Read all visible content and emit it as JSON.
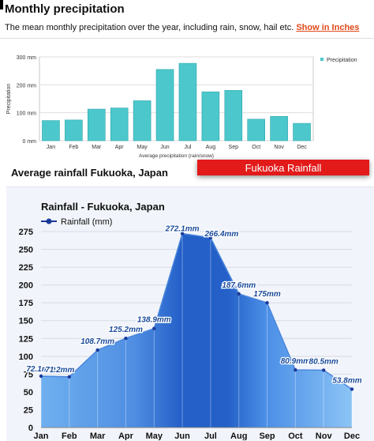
{
  "header": {
    "title": "Monthly precipitation",
    "subtitle": "The mean monthly precipitation over the year, including rain, snow, hail etc.",
    "link_label": "Show in Inches"
  },
  "section": {
    "title": "Average rainfall Fukuoka, Japan",
    "banner": "Fukuoka    Rainfall"
  },
  "colors": {
    "bar_fill": "#4cc8cc",
    "bar_stroke": "#2aa5aa",
    "area_light": "#6fb0f0",
    "area_dark": "#2460c8",
    "area_line": "#4a86dc",
    "banner": "#e21a1a",
    "link": "#e0491a"
  },
  "chart_data": [
    {
      "type": "bar",
      "title": "",
      "xlabel": "Average precipitation (rain/snow)",
      "ylabel": "Precipitation",
      "categories": [
        "Jan",
        "Feb",
        "Mar",
        "Apr",
        "May",
        "Jun",
        "Jul",
        "Aug",
        "Sep",
        "Oct",
        "Nov",
        "Dec"
      ],
      "series": [
        {
          "name": "Precipitation",
          "values": [
            72,
            74,
            113,
            117,
            143,
            255,
            277,
            175,
            180,
            77,
            87,
            62
          ]
        }
      ],
      "ylim": [
        0,
        300
      ],
      "yticks": [
        0,
        100,
        200,
        300
      ],
      "ytick_labels": [
        "0 mm",
        "100 mm",
        "200 mm",
        "300 mm"
      ],
      "grid": true,
      "legend": "top-right"
    },
    {
      "type": "area",
      "title": "Rainfall - Fukuoka, Japan",
      "xlabel": "",
      "ylabel": "",
      "categories": [
        "Jan",
        "Feb",
        "Mar",
        "Apr",
        "May",
        "Jun",
        "Jul",
        "Aug",
        "Sep",
        "Oct",
        "Nov",
        "Dec"
      ],
      "series": [
        {
          "name": "Rainfall (mm)",
          "values": [
            72.1,
            71.2,
            108.7,
            125.2,
            138.9,
            272.1,
            266.4,
            187.6,
            175,
            80.9,
            80.5,
            53.8
          ]
        }
      ],
      "data_labels": [
        "72.1mm",
        "71.2mm",
        "108.7mm",
        "125.2mm",
        "138.9mm",
        "272.1mm",
        "266.4mm",
        "187.6mm",
        "175mm",
        "80.9mm",
        "80.5mm",
        "53.8mm"
      ],
      "ylim": [
        0,
        275
      ],
      "yticks": [
        0,
        25,
        50,
        75,
        100,
        125,
        150,
        175,
        200,
        225,
        250,
        275
      ],
      "grid": true,
      "legend": "top-left"
    }
  ]
}
